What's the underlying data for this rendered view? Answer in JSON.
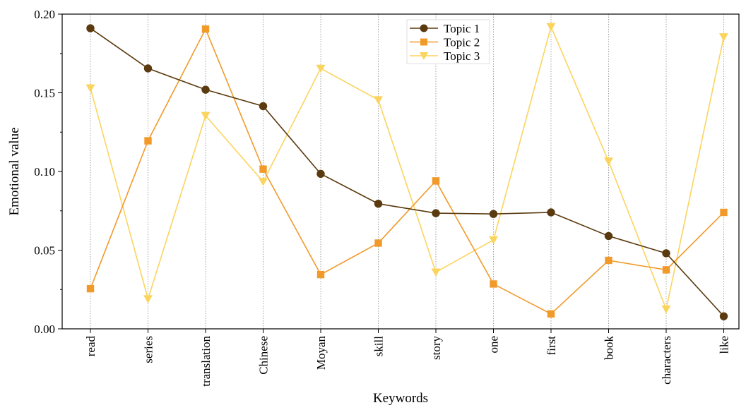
{
  "chart_data": {
    "type": "line",
    "title": "",
    "xlabel": "Keywords",
    "ylabel": "Emotional value",
    "ylim": [
      0,
      0.2
    ],
    "yticks": [
      "0.00",
      "0.05",
      "0.10",
      "0.15",
      "0.20"
    ],
    "ytick_values": [
      0,
      0.05,
      0.1,
      0.15,
      0.2
    ],
    "categories": [
      "read",
      "series",
      "translation",
      "Chinese",
      "Moyan",
      "skill",
      "story",
      "one",
      "first",
      "book",
      "characters",
      "like"
    ],
    "grid": "vertical dotted lines at each category",
    "legend_position": "top-center",
    "series": [
      {
        "name": "Topic 1",
        "color": "#5a3a0e",
        "marker": "circle",
        "values": [
          0.191,
          0.1655,
          0.152,
          0.1415,
          0.0985,
          0.0795,
          0.0735,
          0.073,
          0.074,
          0.059,
          0.048,
          0.008
        ]
      },
      {
        "name": "Topic 2",
        "color": "#f19a2a",
        "marker": "square",
        "values": [
          0.0255,
          0.1195,
          0.1905,
          0.1015,
          0.0345,
          0.0545,
          0.094,
          0.0285,
          0.0095,
          0.0435,
          0.0375,
          0.074
        ]
      },
      {
        "name": "Topic 3",
        "color": "#fbd45e",
        "marker": "triangle-down",
        "values": [
          0.153,
          0.019,
          0.1355,
          0.0935,
          0.1655,
          0.1455,
          0.036,
          0.0565,
          0.192,
          0.1065,
          0.0125,
          0.1855
        ]
      }
    ]
  }
}
